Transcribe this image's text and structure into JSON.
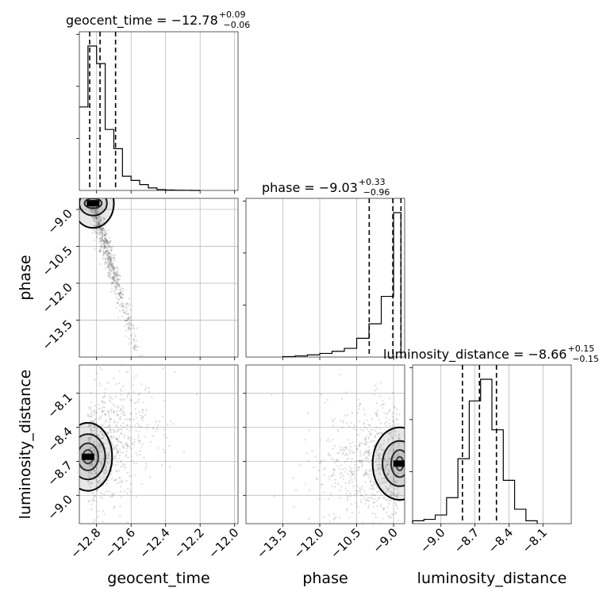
{
  "chart_data": {
    "type": "corner",
    "parameters": [
      "geocent_time",
      "phase",
      "luminosity_distance"
    ],
    "panels": [
      {
        "kind": "histogram",
        "parameter": "geocent_time",
        "title_main": "geocent_time = −12.78",
        "title_plus": "+0.09",
        "title_minus": "−0.06",
        "xlim": [
          -12.9,
          -11.98
        ],
        "bin_edges": [
          -12.9,
          -12.85,
          -12.8,
          -12.75,
          -12.7,
          -12.65,
          -12.6,
          -12.55,
          -12.5,
          -12.45,
          -12.4,
          -12.35,
          -12.3,
          -12.25,
          -12.2
        ],
        "counts": [
          1.0,
          1.73,
          1.52,
          0.73,
          0.5,
          0.17,
          0.12,
          0.07,
          0.03,
          0.01,
          0.005,
          0.003,
          0.002,
          0.0
        ],
        "quantiles": [
          -12.84,
          -12.78,
          -12.69
        ]
      },
      {
        "kind": "histogram",
        "parameter": "phase",
        "title_main": "phase = −9.03",
        "title_plus": "+0.33",
        "title_minus": "−0.96",
        "xlim": [
          -15.0,
          -8.55
        ],
        "bin_edges": [
          -13.5,
          -13.0,
          -12.5,
          -12.0,
          -11.5,
          -11.0,
          -10.5,
          -10.0,
          -9.5,
          -9.0,
          -8.7
        ],
        "counts": [
          0.003,
          0.008,
          0.015,
          0.025,
          0.04,
          0.06,
          0.13,
          0.23,
          0.42,
          1.0
        ],
        "quantiles": [
          -9.99,
          -9.03,
          -8.7
        ]
      },
      {
        "kind": "histogram",
        "parameter": "luminosity_distance",
        "title_main": "luminosity_distance = −8.66",
        "title_plus": "+0.15",
        "title_minus": "−0.15",
        "xlim": [
          -9.25,
          -7.85
        ],
        "bin_edges": [
          -9.25,
          -9.15,
          -9.05,
          -8.95,
          -8.85,
          -8.75,
          -8.65,
          -8.55,
          -8.45,
          -8.35,
          -8.25,
          -8.15
        ],
        "counts": [
          0.02,
          0.03,
          0.06,
          0.18,
          0.45,
          0.85,
          1.0,
          0.65,
          0.3,
          0.1,
          0.02
        ],
        "quantiles": [
          -8.81,
          -8.66,
          -8.51
        ]
      },
      {
        "kind": "scatter",
        "x_parameter": "geocent_time",
        "y_parameter": "phase",
        "xlim": [
          -12.9,
          -11.98
        ],
        "ylim": [
          -15.0,
          -8.55
        ],
        "peak": [
          -12.82,
          -8.75
        ],
        "contours": [
          [
            0.03,
            0.1
          ],
          [
            0.05,
            0.2
          ],
          [
            0.08,
            0.5
          ],
          [
            0.12,
            1.0
          ]
        ]
      },
      {
        "kind": "scatter",
        "x_parameter": "geocent_time",
        "y_parameter": "luminosity_distance",
        "xlim": [
          -12.9,
          -11.98
        ],
        "ylim": [
          -9.25,
          -7.85
        ],
        "peak": [
          -12.85,
          -8.66
        ],
        "contours": [
          [
            0.03,
            0.06
          ],
          [
            0.06,
            0.12
          ],
          [
            0.1,
            0.2
          ],
          [
            0.14,
            0.3
          ]
        ]
      },
      {
        "kind": "scatter",
        "x_parameter": "phase",
        "y_parameter": "luminosity_distance",
        "xlim": [
          -15.0,
          -8.55
        ],
        "ylim": [
          -9.25,
          -7.85
        ],
        "peak": [
          -8.75,
          -8.72
        ],
        "contours": [
          [
            0.15,
            0.06
          ],
          [
            0.35,
            0.12
          ],
          [
            0.7,
            0.2
          ],
          [
            1.1,
            0.32
          ]
        ]
      }
    ],
    "x_ticks": {
      "geocent_time": [
        "−12.8",
        "−12.6",
        "−12.4",
        "−12.2",
        "−12.0"
      ],
      "phase": [
        "−13.5",
        "−12.0",
        "−10.5",
        "−9.0"
      ],
      "luminosity_distance": [
        "−9.0",
        "−8.7",
        "−8.4",
        "−8.1"
      ]
    },
    "x_tick_values": {
      "geocent_time": [
        -12.8,
        -12.6,
        -12.4,
        -12.2,
        -12.0
      ],
      "phase": [
        -13.5,
        -12.0,
        -10.5,
        -9.0
      ],
      "luminosity_distance": [
        -9.0,
        -8.7,
        -8.4,
        -8.1
      ]
    },
    "y_ticks": {
      "phase": [
        "−9.0",
        "−10.5",
        "−12.0",
        "−13.5"
      ],
      "luminosity_distance": [
        "−8.1",
        "−8.4",
        "−8.7",
        "−9.0"
      ]
    },
    "y_tick_values": {
      "phase": [
        -9.0,
        -10.5,
        -12.0,
        -13.5
      ],
      "luminosity_distance": [
        -8.1,
        -8.4,
        -8.7,
        -9.0
      ]
    },
    "xlabels": [
      "geocent_time",
      "phase",
      "luminosity_distance"
    ],
    "ylabels": [
      "phase",
      "luminosity_distance"
    ],
    "grid": true
  }
}
